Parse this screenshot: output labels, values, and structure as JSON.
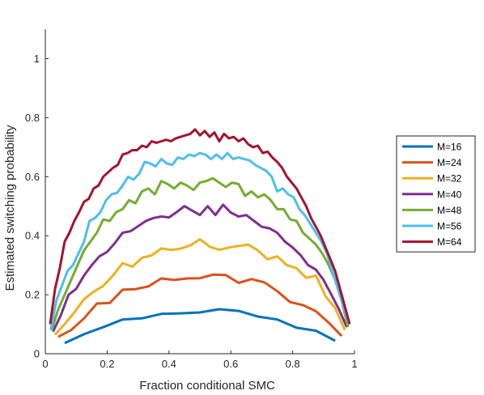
{
  "chart_data": {
    "type": "line",
    "xlabel": "Fraction conditional SMC",
    "ylabel": "Estimated switching probability",
    "xlim": [
      0,
      1
    ],
    "ylim": [
      0,
      1.1
    ],
    "x_ticks": [
      0,
      0.2,
      0.4,
      0.6,
      0.8,
      1
    ],
    "y_ticks": [
      0,
      0.2,
      0.4,
      0.6,
      0.8,
      1
    ],
    "x_tick_labels": [
      "0",
      "0.2",
      "0.4",
      "0.6",
      "0.8",
      "1"
    ],
    "y_tick_labels": [
      "0",
      "0.2",
      "0.4",
      "0.6",
      "0.8",
      "1"
    ],
    "legend_position": "right",
    "grid": false,
    "series": [
      {
        "name": "M=16",
        "color": "#0072BD",
        "x": [
          0.0625,
          0.125,
          0.1875,
          0.25,
          0.3125,
          0.375,
          0.4375,
          0.5,
          0.5625,
          0.625,
          0.6875,
          0.75,
          0.8125,
          0.875,
          0.9375
        ],
        "y": [
          0.036,
          0.066,
          0.09,
          0.116,
          0.12,
          0.135,
          0.137,
          0.14,
          0.151,
          0.145,
          0.126,
          0.116,
          0.088,
          0.078,
          0.044
        ]
      },
      {
        "name": "M=24",
        "color": "#D95319",
        "x": [
          0.0417,
          0.0833,
          0.125,
          0.1667,
          0.2083,
          0.25,
          0.2917,
          0.3333,
          0.375,
          0.4167,
          0.4583,
          0.5,
          0.5417,
          0.5833,
          0.625,
          0.6667,
          0.7083,
          0.75,
          0.7917,
          0.8333,
          0.875,
          0.9167,
          0.9583
        ],
        "y": [
          0.057,
          0.08,
          0.12,
          0.17,
          0.172,
          0.217,
          0.219,
          0.228,
          0.255,
          0.25,
          0.255,
          0.256,
          0.268,
          0.267,
          0.24,
          0.253,
          0.242,
          0.212,
          0.175,
          0.165,
          0.144,
          0.105,
          0.06
        ]
      },
      {
        "name": "M=32",
        "color": "#EDB120",
        "x": [
          0.0313,
          0.0625,
          0.0938,
          0.125,
          0.1563,
          0.1875,
          0.2188,
          0.25,
          0.2813,
          0.3125,
          0.3438,
          0.375,
          0.4063,
          0.4375,
          0.4688,
          0.5,
          0.5313,
          0.5625,
          0.5938,
          0.625,
          0.6563,
          0.6875,
          0.7188,
          0.75,
          0.7813,
          0.8125,
          0.8438,
          0.875,
          0.9063,
          0.9375,
          0.9688
        ],
        "y": [
          0.065,
          0.1,
          0.14,
          0.185,
          0.21,
          0.23,
          0.265,
          0.307,
          0.295,
          0.325,
          0.333,
          0.357,
          0.352,
          0.356,
          0.367,
          0.388,
          0.363,
          0.352,
          0.36,
          0.365,
          0.37,
          0.35,
          0.32,
          0.33,
          0.3,
          0.29,
          0.257,
          0.265,
          0.195,
          0.155,
          0.08
        ]
      },
      {
        "name": "M=40",
        "color": "#7E2F8E",
        "x": [
          0.025,
          0.05,
          0.075,
          0.1,
          0.125,
          0.15,
          0.175,
          0.2,
          0.225,
          0.25,
          0.275,
          0.3,
          0.325,
          0.35,
          0.375,
          0.4,
          0.425,
          0.45,
          0.475,
          0.5,
          0.525,
          0.55,
          0.575,
          0.6,
          0.625,
          0.65,
          0.675,
          0.7,
          0.725,
          0.75,
          0.775,
          0.8,
          0.825,
          0.85,
          0.875,
          0.9,
          0.925,
          0.95,
          0.975
        ],
        "y": [
          0.075,
          0.13,
          0.2,
          0.22,
          0.265,
          0.3,
          0.33,
          0.345,
          0.375,
          0.41,
          0.415,
          0.432,
          0.45,
          0.46,
          0.465,
          0.462,
          0.48,
          0.5,
          0.485,
          0.47,
          0.5,
          0.47,
          0.505,
          0.478,
          0.465,
          0.47,
          0.45,
          0.43,
          0.425,
          0.41,
          0.38,
          0.36,
          0.335,
          0.3,
          0.285,
          0.25,
          0.2,
          0.15,
          0.09
        ]
      },
      {
        "name": "M=48",
        "color": "#77AC30",
        "x": [
          0.0208,
          0.0417,
          0.0625,
          0.0833,
          0.1042,
          0.125,
          0.1458,
          0.1667,
          0.1875,
          0.2083,
          0.2292,
          0.25,
          0.2708,
          0.2917,
          0.3125,
          0.3333,
          0.3542,
          0.375,
          0.3958,
          0.4167,
          0.4375,
          0.4583,
          0.4792,
          0.5,
          0.5208,
          0.5417,
          0.5625,
          0.5833,
          0.6042,
          0.625,
          0.6458,
          0.6667,
          0.6875,
          0.7083,
          0.7292,
          0.75,
          0.7708,
          0.7917,
          0.8125,
          0.8333,
          0.8542,
          0.875,
          0.8958,
          0.9167,
          0.9375,
          0.9583,
          0.9792
        ],
        "y": [
          0.08,
          0.15,
          0.2,
          0.25,
          0.3,
          0.35,
          0.38,
          0.41,
          0.455,
          0.45,
          0.48,
          0.49,
          0.52,
          0.51,
          0.55,
          0.56,
          0.54,
          0.585,
          0.575,
          0.56,
          0.58,
          0.57,
          0.555,
          0.58,
          0.585,
          0.595,
          0.58,
          0.565,
          0.58,
          0.575,
          0.535,
          0.55,
          0.53,
          0.54,
          0.52,
          0.49,
          0.49,
          0.455,
          0.45,
          0.41,
          0.39,
          0.37,
          0.34,
          0.3,
          0.25,
          0.18,
          0.09
        ]
      },
      {
        "name": "M=56",
        "color": "#4DBEEE",
        "x": [
          0.0179,
          0.0357,
          0.0536,
          0.0714,
          0.0893,
          0.1071,
          0.125,
          0.1429,
          0.1607,
          0.1786,
          0.1964,
          0.2143,
          0.2321,
          0.25,
          0.2679,
          0.2857,
          0.3036,
          0.3214,
          0.3393,
          0.3571,
          0.375,
          0.3929,
          0.4107,
          0.4286,
          0.4464,
          0.4643,
          0.4821,
          0.5,
          0.5179,
          0.5357,
          0.5536,
          0.5714,
          0.5893,
          0.6071,
          0.625,
          0.6429,
          0.6607,
          0.6786,
          0.6964,
          0.7143,
          0.7321,
          0.75,
          0.7679,
          0.7857,
          0.8036,
          0.8214,
          0.8393,
          0.8571,
          0.875,
          0.8929,
          0.9107,
          0.9286,
          0.9464,
          0.9643,
          0.9821
        ],
        "y": [
          0.08,
          0.18,
          0.23,
          0.28,
          0.3,
          0.34,
          0.38,
          0.45,
          0.46,
          0.48,
          0.52,
          0.54,
          0.545,
          0.57,
          0.6,
          0.59,
          0.61,
          0.65,
          0.645,
          0.635,
          0.66,
          0.645,
          0.64,
          0.665,
          0.66,
          0.675,
          0.67,
          0.68,
          0.675,
          0.66,
          0.675,
          0.66,
          0.68,
          0.66,
          0.665,
          0.66,
          0.655,
          0.64,
          0.63,
          0.62,
          0.6,
          0.55,
          0.56,
          0.54,
          0.53,
          0.49,
          0.47,
          0.44,
          0.41,
          0.38,
          0.34,
          0.28,
          0.22,
          0.16,
          0.1
        ]
      },
      {
        "name": "M=64",
        "color": "#A2142F",
        "x": [
          0.0156,
          0.0313,
          0.0469,
          0.0625,
          0.0781,
          0.0938,
          0.1094,
          0.125,
          0.1406,
          0.1563,
          0.1719,
          0.1875,
          0.2031,
          0.2188,
          0.2344,
          0.25,
          0.2656,
          0.2813,
          0.2969,
          0.3125,
          0.3281,
          0.3438,
          0.3594,
          0.375,
          0.3906,
          0.4063,
          0.4219,
          0.4375,
          0.4531,
          0.4688,
          0.4844,
          0.5,
          0.5156,
          0.5313,
          0.5469,
          0.5625,
          0.5781,
          0.5938,
          0.6094,
          0.625,
          0.6406,
          0.6563,
          0.6719,
          0.6875,
          0.7031,
          0.7188,
          0.7344,
          0.75,
          0.7656,
          0.7813,
          0.7969,
          0.8125,
          0.8281,
          0.8438,
          0.8594,
          0.875,
          0.8906,
          0.9063,
          0.9219,
          0.9375,
          0.9531,
          0.9688,
          0.9844
        ],
        "y": [
          0.1,
          0.22,
          0.29,
          0.38,
          0.41,
          0.45,
          0.48,
          0.515,
          0.525,
          0.56,
          0.57,
          0.6,
          0.615,
          0.63,
          0.64,
          0.675,
          0.68,
          0.69,
          0.69,
          0.705,
          0.7,
          0.72,
          0.715,
          0.72,
          0.725,
          0.72,
          0.73,
          0.735,
          0.74,
          0.745,
          0.76,
          0.74,
          0.755,
          0.735,
          0.75,
          0.72,
          0.745,
          0.73,
          0.735,
          0.72,
          0.73,
          0.71,
          0.7,
          0.705,
          0.68,
          0.685,
          0.665,
          0.65,
          0.63,
          0.6,
          0.58,
          0.56,
          0.53,
          0.5,
          0.46,
          0.43,
          0.4,
          0.36,
          0.32,
          0.28,
          0.22,
          0.16,
          0.1
        ]
      }
    ]
  }
}
